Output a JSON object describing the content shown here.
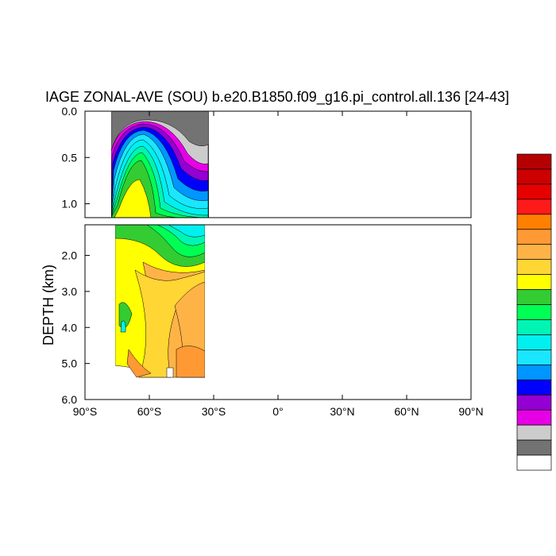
{
  "chart_data": {
    "type": "heatmap",
    "title": "IAGE ZONAL-AVE (SOU) b.e20.B1850.f09_g16.pi_control.all.136 [24-43]",
    "ylabel": "DEPTH (km)",
    "xlabel": "",
    "x_tick_labels": [
      "90°S",
      "60°S",
      "30°S",
      "0°",
      "30°N",
      "60°N",
      "90°N"
    ],
    "x_tick_values": [
      -90,
      -60,
      -30,
      0,
      30,
      60,
      90
    ],
    "xlim": [
      -90,
      90
    ],
    "y_tick_labels_upper": [
      "0.0",
      "0.5",
      "1.0"
    ],
    "y_tick_values_upper": [
      0.0,
      0.5,
      1.0
    ],
    "ylim_upper": [
      0.0,
      1.15
    ],
    "y_tick_labels_lower": [
      "2.0",
      "3.0",
      "4.0",
      "5.0",
      "6.0"
    ],
    "y_tick_values_lower": [
      2.0,
      3.0,
      4.0,
      5.0,
      6.0
    ],
    "ylim_lower": [
      1.15,
      6.0
    ],
    "data_lon_range": [
      -78,
      -34
    ],
    "colorbar_colors": [
      "#b40000",
      "#cc0000",
      "#e60000",
      "#ff1a1a",
      "#ff7f00",
      "#ff9933",
      "#ffb347",
      "#ffd633",
      "#ffff00",
      "#33cc33",
      "#00ff55",
      "#00f5b4",
      "#00f0f0",
      "#1ae6ff",
      "#0096ff",
      "#0000ff",
      "#9400d3",
      "#e600e6",
      "#cccccc",
      "#737373",
      "#ffffff"
    ],
    "land_color": "#737373"
  }
}
